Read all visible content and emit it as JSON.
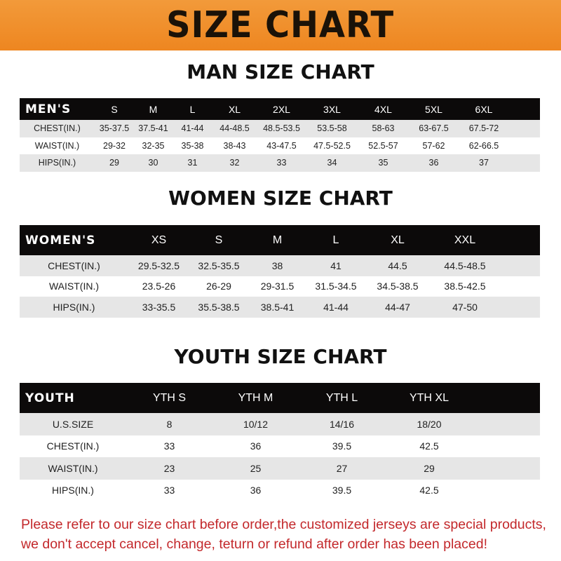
{
  "banner": "SIZE CHART",
  "colors": {
    "banner": "#ee8620",
    "header_row": "#0c0a0a",
    "shaded_row": "#e6e6e6",
    "note": "#c3282b"
  },
  "men": {
    "title": "MAN SIZE CHART",
    "header": "MEN'S",
    "sizes": [
      "S",
      "M",
      "L",
      "XL",
      "2XL",
      "3XL",
      "4XL",
      "5XL",
      "6XL"
    ],
    "rows": [
      {
        "label": "CHEST(IN.)",
        "values": [
          "35-37.5",
          "37.5-41",
          "41-44",
          "44-48.5",
          "48.5-53.5",
          "53.5-58",
          "58-63",
          "63-67.5",
          "67.5-72"
        ]
      },
      {
        "label": "WAIST(IN.)",
        "values": [
          "29-32",
          "32-35",
          "35-38",
          "38-43",
          "43-47.5",
          "47.5-52.5",
          "52.5-57",
          "57-62",
          "62-66.5"
        ]
      },
      {
        "label": "HIPS(IN.)",
        "values": [
          "29",
          "30",
          "31",
          "32",
          "33",
          "34",
          "35",
          "36",
          "37"
        ]
      }
    ]
  },
  "women": {
    "title": "WOMEN SIZE CHART",
    "header": "WOMEN'S",
    "sizes": [
      "XS",
      "S",
      "M",
      "L",
      "XL",
      "XXL"
    ],
    "rows": [
      {
        "label": "CHEST(IN.)",
        "values": [
          "29.5-32.5",
          "32.5-35.5",
          "38",
          "41",
          "44.5",
          "44.5-48.5"
        ]
      },
      {
        "label": "WAIST(IN.)",
        "values": [
          "23.5-26",
          "26-29",
          "29-31.5",
          "31.5-34.5",
          "34.5-38.5",
          "38.5-42.5"
        ]
      },
      {
        "label": "HIPS(IN.)",
        "values": [
          "33-35.5",
          "35.5-38.5",
          "38.5-41",
          "41-44",
          "44-47",
          "47-50"
        ]
      }
    ]
  },
  "youth": {
    "title": "YOUTH SIZE CHART",
    "header": "YOUTH",
    "sizes": [
      "YTH S",
      "YTH M",
      "YTH L",
      "YTH XL"
    ],
    "rows": [
      {
        "label": "U.S.SIZE",
        "values": [
          "8",
          "10/12",
          "14/16",
          "18/20"
        ]
      },
      {
        "label": "CHEST(IN.)",
        "values": [
          "33",
          "36",
          "39.5",
          "42.5"
        ]
      },
      {
        "label": "WAIST(IN.)",
        "values": [
          "23",
          "25",
          "27",
          "29"
        ]
      },
      {
        "label": "HIPS(IN.)",
        "values": [
          "33",
          "36",
          "39.5",
          "42.5"
        ]
      }
    ]
  },
  "note": {
    "line1": "Please refer to our size chart before order,the customized jerseys are special products,",
    "line2": "we don't accept cancel, change, teturn or refund after order has been placed!"
  }
}
